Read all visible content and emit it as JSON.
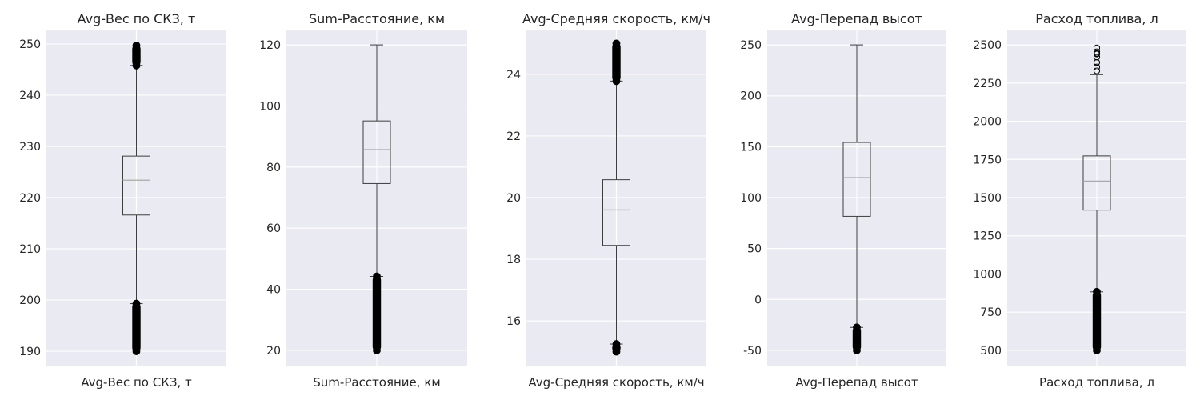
{
  "chart_data": [
    {
      "type": "box",
      "title": "Avg-Вес по СКЗ, т",
      "category": "Avg-Вес по СКЗ, т",
      "ylim": [
        187.2,
        252.8
      ],
      "yticks": [
        190,
        200,
        210,
        220,
        230,
        240,
        250
      ],
      "box": {
        "whisker_low": 199.3,
        "q1": 216.6,
        "median": 223.4,
        "q3": 228.1,
        "whisker_high": 245.8
      },
      "outliers_high": {
        "from": 245.8,
        "to": 249.7
      },
      "outliers_low": {
        "from": 190.0,
        "to": 199.3
      }
    },
    {
      "type": "box",
      "title": "Sum-Расстояние, км",
      "category": "Sum-Расстояние, км",
      "ylim": [
        15.0,
        125.0
      ],
      "yticks": [
        20,
        40,
        60,
        80,
        100,
        120
      ],
      "box": {
        "whisker_low": 44.2,
        "q1": 74.6,
        "median": 85.7,
        "q3": 95.1,
        "whisker_high": 120.0
      },
      "outliers_high": null,
      "outliers_low": {
        "from": 20.0,
        "to": 44.2
      }
    },
    {
      "type": "box",
      "title": "Avg-Средняя скорость, км/ч",
      "category": "Avg-Средняя скорость, км/ч",
      "ylim": [
        14.55,
        25.45
      ],
      "yticks": [
        16,
        18,
        20,
        22,
        24
      ],
      "box": {
        "whisker_low": 15.25,
        "q1": 18.45,
        "median": 19.6,
        "q3": 20.58,
        "whisker_high": 23.78
      },
      "outliers_high": {
        "from": 23.78,
        "to": 25.0
      },
      "outliers_low": {
        "from": 15.0,
        "to": 15.25
      }
    },
    {
      "type": "box",
      "title": "Avg-Перепад высот",
      "category": "Avg-Перепад высот",
      "ylim": [
        -65.0,
        265.0
      ],
      "yticks": [
        -50,
        0,
        50,
        100,
        150,
        200,
        250
      ],
      "box": {
        "whisker_low": -27.5,
        "q1": 81.6,
        "median": 119.6,
        "q3": 154.2,
        "whisker_high": 250.0
      },
      "outliers_high": null,
      "outliers_low": {
        "from": -50.0,
        "to": -27.5
      }
    },
    {
      "type": "box",
      "title": "Расход топлива, л",
      "category": "Расход топлива, л",
      "ylim": [
        400.0,
        2600.0
      ],
      "yticks": [
        500,
        750,
        1000,
        1250,
        1500,
        1750,
        2000,
        2250,
        2500
      ],
      "yticklabels": [
        "500",
        "750",
        "1000",
        "1250",
        "1500",
        "1750",
        "2000",
        "2250",
        "2500"
      ],
      "box": {
        "whisker_low": 883,
        "q1": 1418,
        "median": 1608,
        "q3": 1773,
        "whisker_high": 2305
      },
      "outliers_high": {
        "points": [
          2330,
          2355,
          2385,
          2420,
          2440,
          2445,
          2455,
          2480
        ]
      },
      "outliers_low": {
        "from": 500,
        "to": 883
      }
    }
  ]
}
